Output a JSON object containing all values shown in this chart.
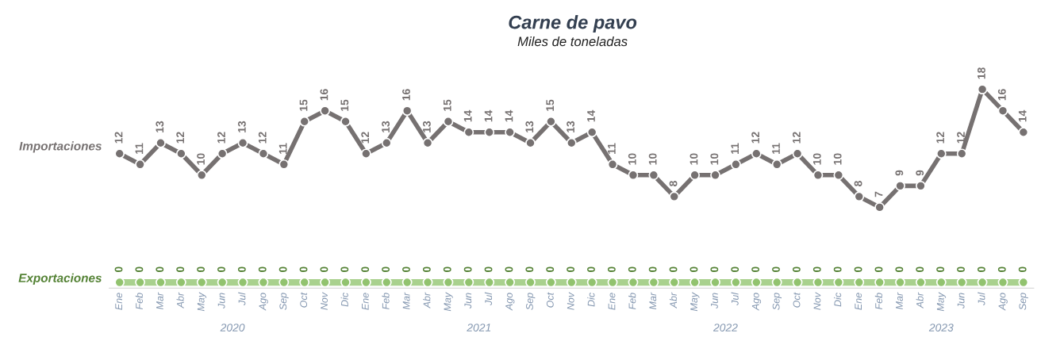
{
  "chart_data": {
    "type": "line",
    "title": "Carne de pavo",
    "subtitle": "Miles de toneladas",
    "categories": [
      "Ene",
      "Feb",
      "Mar",
      "Abr",
      "May",
      "Jun",
      "Jul",
      "Ago",
      "Sep",
      "Oct",
      "Nov",
      "Dic",
      "Ene",
      "Feb",
      "Mar",
      "Abr",
      "May",
      "Jun",
      "Jul",
      "Ago",
      "Sep",
      "Oct",
      "Nov",
      "Dic",
      "Ene",
      "Feb",
      "Mar",
      "Abr",
      "May",
      "Jun",
      "Jul",
      "Ago",
      "Sep",
      "Oct",
      "Nov",
      "Dic",
      "Ene",
      "Feb",
      "Mar",
      "Abr",
      "May",
      "Jun",
      "Jul",
      "Ago",
      "Sep"
    ],
    "series": [
      {
        "name": "Importaciones",
        "color": "#767171",
        "values": [
          12,
          11,
          13,
          12,
          10,
          12,
          13,
          12,
          11,
          15,
          16,
          15,
          12,
          13,
          16,
          13,
          15,
          14,
          14,
          14,
          13,
          15,
          13,
          14,
          11,
          10,
          10,
          8,
          10,
          10,
          11,
          12,
          11,
          12,
          10,
          10,
          8,
          7,
          9,
          9,
          12,
          12,
          18,
          16,
          14
        ]
      },
      {
        "name": "Exportaciones",
        "color": "#a9d18e",
        "values": [
          0,
          0,
          0,
          0,
          0,
          0,
          0,
          0,
          0,
          0,
          0,
          0,
          0,
          0,
          0,
          0,
          0,
          0,
          0,
          0,
          0,
          0,
          0,
          0,
          0,
          0,
          0,
          0,
          0,
          0,
          0,
          0,
          0,
          0,
          0,
          0,
          0,
          0,
          0,
          0,
          0,
          0,
          0,
          0,
          0
        ]
      }
    ],
    "marker": "circle",
    "data_labels": true,
    "tick_labels": "x",
    "grid": false,
    "legend": false,
    "annotations": [
      "2020",
      "2021",
      "2022",
      "2023"
    ]
  }
}
